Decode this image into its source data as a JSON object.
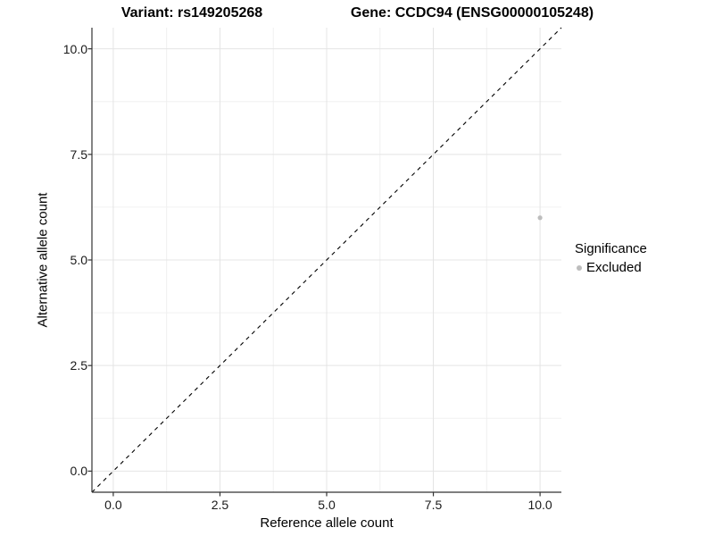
{
  "chart_data": {
    "type": "scatter",
    "title_left": "Variant: rs149205268",
    "title_right": "Gene: CCDC94 (ENSG00000105248)",
    "xlabel": "Reference allele count",
    "ylabel": "Alternative allele count",
    "xlim": [
      -0.5,
      10.5
    ],
    "ylim": [
      -0.5,
      10.5
    ],
    "major_ticks": [
      0,
      2.5,
      5,
      7.5,
      10
    ],
    "minor_ticks": [
      1.25,
      3.75,
      6.25,
      8.75
    ],
    "x_tick_labels": [
      "0.0",
      "2.5",
      "5.0",
      "7.5",
      "10.0"
    ],
    "y_tick_labels": [
      "0.0",
      "2.5",
      "5.0",
      "7.5",
      "10.0"
    ],
    "grid": true,
    "identity_line": {
      "style": "dashed",
      "x1": -0.5,
      "y1": -0.5,
      "x2": 10.5,
      "y2": 10.5
    },
    "series": [
      {
        "name": "Excluded",
        "points": [
          {
            "x": 10,
            "y": 6
          }
        ]
      }
    ],
    "legend": {
      "position": "right",
      "title": "Significance",
      "items": [
        {
          "label": "Excluded",
          "color": "#bdbdbd"
        }
      ]
    }
  },
  "colors": {
    "point": "#bdbdbd",
    "grid_major": "#e4e4e4",
    "grid_minor": "#f0f0f0",
    "axis_line": "#333333",
    "identity_line": "#000000",
    "tick_text": "#1a1a1a"
  }
}
